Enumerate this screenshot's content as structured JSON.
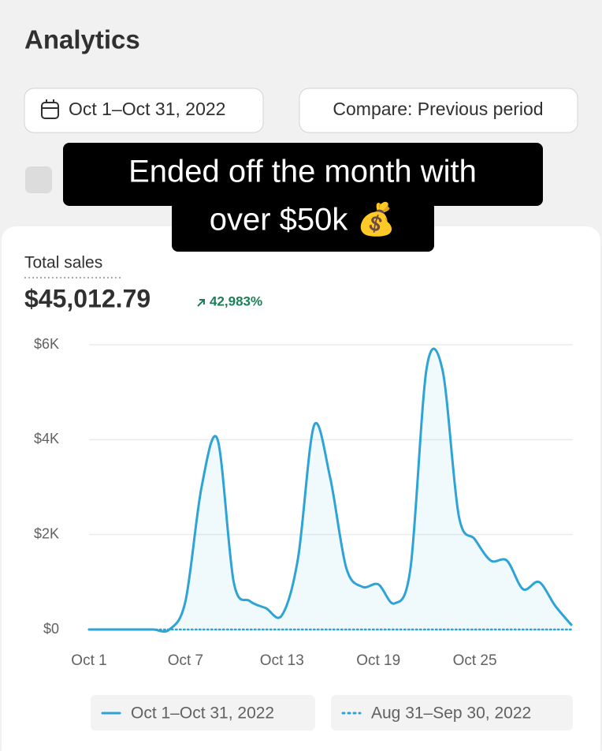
{
  "header": {
    "title": "Analytics"
  },
  "controls": {
    "date_range": "Oct 1–Oct 31, 2022",
    "compare": "Compare: Previous period"
  },
  "caption": {
    "lines": [
      "Ended off the month with",
      "over $50k 💰"
    ]
  },
  "metric": {
    "label": "Total sales",
    "value": "$45,012.79",
    "change": "42,983%"
  },
  "chart_data": {
    "type": "line",
    "categories": [
      "Oct 1",
      null,
      null,
      null,
      null,
      null,
      "Oct 7",
      null,
      null,
      null,
      null,
      null,
      "Oct 13",
      null,
      null,
      null,
      null,
      null,
      "Oct 19",
      null,
      null,
      null,
      null,
      null,
      "Oct 25",
      null,
      null,
      null,
      null,
      null,
      null
    ],
    "series": [
      {
        "name": "Oct 1–Oct 31, 2022",
        "color": "#2ea3d5",
        "style": "solid",
        "values": [
          0,
          0,
          0,
          0,
          0,
          0,
          600,
          3000,
          4000,
          1000,
          600,
          450,
          300,
          1500,
          4300,
          3200,
          1300,
          900,
          950,
          550,
          1300,
          5500,
          5450,
          2400,
          1900,
          1450,
          1450,
          850,
          1000,
          500,
          100
        ]
      },
      {
        "name": "Aug 31–Sep 30, 2022",
        "color": "#2ea3d5",
        "style": "dotted",
        "values": [
          0,
          0,
          0,
          0,
          0,
          0,
          0,
          0,
          0,
          0,
          0,
          0,
          0,
          0,
          0,
          0,
          0,
          0,
          0,
          0,
          0,
          0,
          0,
          0,
          0,
          0,
          0,
          0,
          0,
          0,
          0
        ]
      }
    ],
    "ylim": [
      0,
      6000
    ],
    "yticks": [
      {
        "value": 0,
        "label": "$0"
      },
      {
        "value": 2000,
        "label": "$2K"
      },
      {
        "value": 4000,
        "label": "$4K"
      },
      {
        "value": 6000,
        "label": "$6K"
      }
    ],
    "grid": true,
    "legend": "bottom"
  }
}
